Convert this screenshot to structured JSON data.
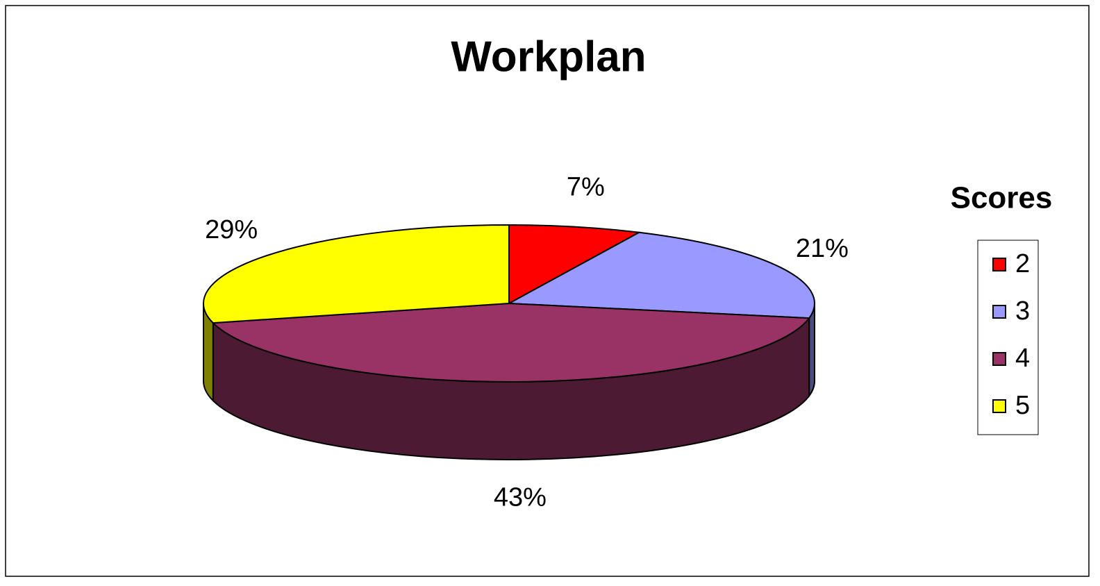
{
  "chart_data": {
    "type": "pie",
    "title": "Workplan",
    "legend_title": "Scores",
    "categories": [
      "2",
      "3",
      "4",
      "5"
    ],
    "values": [
      7,
      21,
      43,
      29
    ],
    "value_labels": [
      "7%",
      "21%",
      "43%",
      "29%"
    ],
    "colors": [
      "#ff0000",
      "#9999ff",
      "#993366",
      "#ffff00"
    ],
    "legend": "right"
  }
}
